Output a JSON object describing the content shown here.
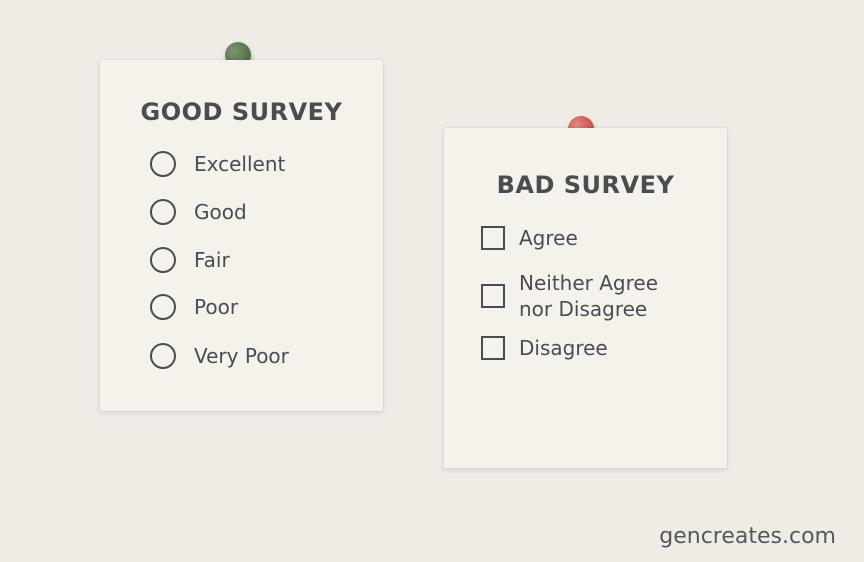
{
  "good_survey": {
    "title": "GOOD SURVEY",
    "options": [
      "Excellent",
      "Good",
      "Fair",
      "Poor",
      "Very Poor"
    ]
  },
  "bad_survey": {
    "title": "BAD SURVEY",
    "options": [
      "Agree",
      "Neither Agree",
      "nor Disagree",
      "Disagree"
    ]
  },
  "watermark": "gencreates.com",
  "colors": {
    "background": "#efece6",
    "paper": "#f4f2ea",
    "good_pin": "#5f7f58",
    "bad_pin": "#d35e55",
    "text": "#4a4d50"
  }
}
